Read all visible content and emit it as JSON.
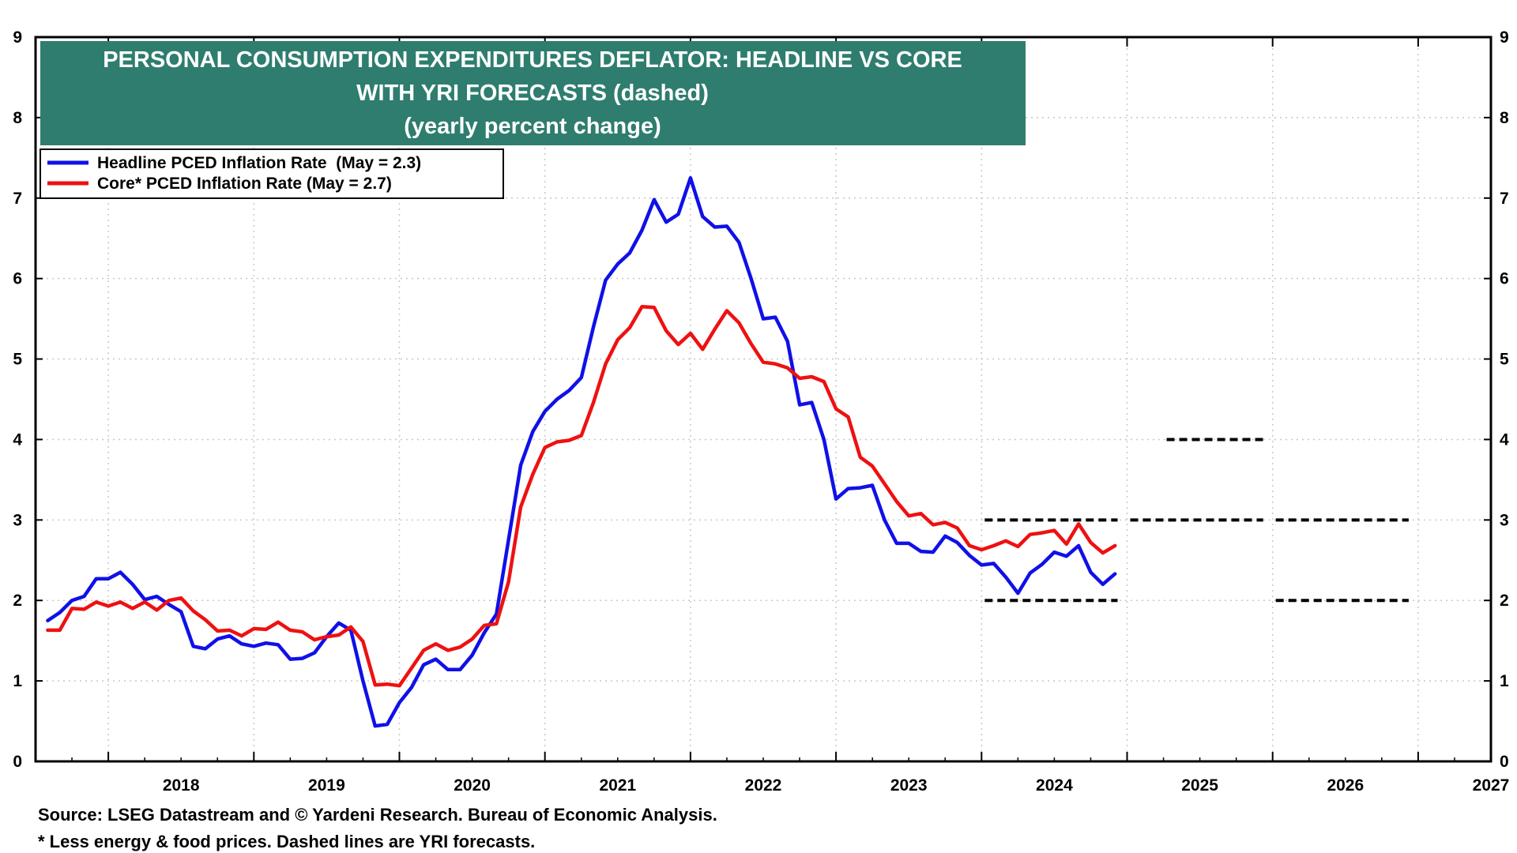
{
  "chart_data": {
    "type": "line",
    "title_lines": [
      "PERSONAL CONSUMPTION EXPENDITURES DEFLATOR: HEADLINE VS CORE",
      "WITH YRI FORECASTS (dashed)",
      "(yearly percent change)"
    ],
    "ylim": [
      0,
      9
    ],
    "yticks": [
      "0",
      "1",
      "2",
      "3",
      "4",
      "5",
      "6",
      "7",
      "8",
      "9"
    ],
    "xlim": [
      "2017-07",
      "2027-07"
    ],
    "xtick_labels": [
      "2018",
      "2019",
      "2020",
      "2021",
      "2022",
      "2023",
      "2024",
      "2025",
      "2026",
      "2027"
    ],
    "grid": true,
    "legend_position": "top-left",
    "colors": {
      "headline": "#1010e8",
      "core": "#ee1111",
      "forecast": "#000000",
      "title_bg": "#2e7d6e"
    },
    "series": [
      {
        "name": "Headline PCED Inflation Rate  (May = 2.3)",
        "color": "#1010e8",
        "x_start": "2017-08",
        "values": [
          1.75,
          1.85,
          2.0,
          2.05,
          2.27,
          2.27,
          2.35,
          2.2,
          2.01,
          2.05,
          1.95,
          1.86,
          1.43,
          1.4,
          1.52,
          1.56,
          1.46,
          1.43,
          1.47,
          1.45,
          1.27,
          1.28,
          1.35,
          1.55,
          1.72,
          1.63,
          1.0,
          0.44,
          0.46,
          0.73,
          0.92,
          1.2,
          1.27,
          1.14,
          1.14,
          1.32,
          1.6,
          1.83,
          2.75,
          3.68,
          4.1,
          4.35,
          4.5,
          4.61,
          4.77,
          5.4,
          5.98,
          6.18,
          6.32,
          6.6,
          6.98,
          6.7,
          6.8,
          7.25,
          6.77,
          6.64,
          6.65,
          6.45,
          6.0,
          5.5,
          5.52,
          5.22,
          4.43,
          4.46,
          4.0,
          3.26,
          3.39,
          3.4,
          3.43,
          3.0,
          2.71,
          2.71,
          2.61,
          2.6,
          2.8,
          2.72,
          2.56,
          2.44,
          2.46,
          2.29,
          2.09,
          2.34,
          2.45,
          2.6,
          2.55,
          2.68,
          2.35,
          2.2,
          2.33
        ]
      },
      {
        "name": "Core* PCED Inflation Rate (May = 2.7)",
        "color": "#ee1111",
        "x_start": "2017-08",
        "values": [
          1.63,
          1.63,
          1.9,
          1.89,
          1.98,
          1.93,
          1.98,
          1.9,
          1.98,
          1.88,
          2.0,
          2.03,
          1.87,
          1.76,
          1.62,
          1.63,
          1.56,
          1.65,
          1.64,
          1.73,
          1.63,
          1.61,
          1.51,
          1.55,
          1.57,
          1.67,
          1.49,
          0.95,
          0.96,
          0.94,
          1.16,
          1.38,
          1.46,
          1.38,
          1.42,
          1.52,
          1.69,
          1.71,
          2.23,
          3.16,
          3.57,
          3.9,
          3.97,
          3.99,
          4.05,
          4.46,
          4.94,
          5.24,
          5.39,
          5.65,
          5.64,
          5.35,
          5.18,
          5.32,
          5.12,
          5.37,
          5.6,
          5.45,
          5.19,
          4.96,
          4.94,
          4.89,
          4.76,
          4.78,
          4.72,
          4.38,
          4.28,
          3.78,
          3.67,
          3.45,
          3.23,
          3.05,
          3.08,
          2.94,
          2.97,
          2.9,
          2.68,
          2.63,
          2.68,
          2.74,
          2.67,
          2.82,
          2.84,
          2.87,
          2.7,
          2.95,
          2.72,
          2.59,
          2.68
        ]
      }
    ],
    "forecasts": [
      {
        "from": "2024-01",
        "to": "2025-01",
        "value": 3.0
      },
      {
        "from": "2025-01",
        "to": "2026-01",
        "value": 3.0
      },
      {
        "from": "2026-01",
        "to": "2027-01",
        "value": 3.0
      },
      {
        "from": "2024-01",
        "to": "2025-01",
        "value": 2.0
      },
      {
        "from": "2026-01",
        "to": "2027-01",
        "value": 2.0
      },
      {
        "from": "2025-04",
        "to": "2026-01",
        "value": 4.0
      }
    ]
  },
  "footnotes": {
    "source": "Source: LSEG Datastream and © Yardeni Research. Bureau of Economic Analysis.",
    "note": "* Less energy & food prices. Dashed lines are YRI forecasts."
  }
}
